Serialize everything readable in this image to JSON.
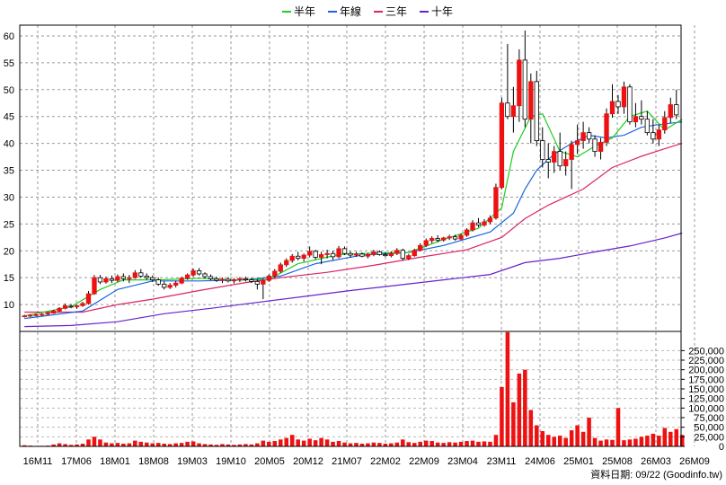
{
  "legend": [
    {
      "label": "半年",
      "color": "#22cc22"
    },
    {
      "label": "年線",
      "color": "#1a66dd"
    },
    {
      "label": "三年",
      "color": "#dd2266"
    },
    {
      "label": "十年",
      "color": "#6622cc"
    }
  ],
  "credit": {
    "label": "資料日期:",
    "date": "09/22",
    "source": "(Goodinfo.tw)"
  },
  "chart_data": {
    "type": "candlestick",
    "x_tick_labels": [
      "16M11",
      "17M06",
      "18M01",
      "18M08",
      "19M03",
      "19M10",
      "20M05",
      "20M12",
      "21M07",
      "22M02",
      "22M09",
      "23M04",
      "23M11",
      "24M06",
      "25M01",
      "25M08",
      "26M03",
      "26M09"
    ],
    "price_axis": {
      "ylim": [
        5,
        62
      ],
      "ticks": [
        10,
        15,
        20,
        25,
        30,
        35,
        40,
        45,
        50,
        55,
        60
      ]
    },
    "volume_axis": {
      "ylim": [
        0,
        300000
      ],
      "ticks": [
        0,
        25000,
        50000,
        75000,
        100000,
        125000,
        150000,
        175000,
        200000,
        225000,
        250000
      ],
      "tick_labels": [
        "0",
        "25,000",
        "50,000",
        "75,000",
        "100,000",
        "125,000",
        "150,000",
        "175,000",
        "200,000",
        "225,000",
        "250,000"
      ]
    },
    "colors": {
      "up": "#ee1111",
      "down": "#00a000",
      "volume": "#ee1111"
    },
    "candles": [
      [
        7.8,
        8.1,
        7.6,
        7.9
      ],
      [
        7.9,
        8.2,
        7.7,
        8.0
      ],
      [
        8.0,
        8.3,
        7.8,
        8.1
      ],
      [
        8.1,
        8.4,
        7.9,
        8.2
      ],
      [
        8.2,
        8.6,
        8.0,
        8.4
      ],
      [
        8.4,
        9.0,
        8.3,
        8.8
      ],
      [
        8.8,
        9.5,
        8.6,
        9.3
      ],
      [
        9.3,
        10.2,
        9.1,
        9.8
      ],
      [
        9.7,
        10.1,
        9.3,
        9.6
      ],
      [
        9.6,
        10.0,
        9.2,
        9.8
      ],
      [
        9.8,
        10.5,
        9.6,
        10.2
      ],
      [
        10.2,
        12.5,
        10.0,
        12.0
      ],
      [
        12.0,
        15.5,
        11.8,
        15.0
      ],
      [
        15.0,
        15.5,
        13.8,
        14.2
      ],
      [
        14.2,
        15.2,
        13.9,
        14.8
      ],
      [
        14.8,
        15.4,
        14.0,
        14.5
      ],
      [
        14.5,
        15.6,
        14.2,
        15.2
      ],
      [
        15.2,
        15.8,
        14.3,
        14.8
      ],
      [
        14.8,
        15.5,
        14.0,
        15.0
      ],
      [
        15.0,
        16.4,
        14.8,
        15.9
      ],
      [
        15.9,
        16.6,
        15.0,
        15.3
      ],
      [
        15.3,
        15.8,
        14.6,
        15.0
      ],
      [
        15.0,
        15.4,
        14.2,
        14.6
      ],
      [
        14.6,
        15.0,
        13.5,
        13.8
      ],
      [
        13.8,
        14.3,
        12.8,
        13.2
      ],
      [
        13.2,
        14.0,
        12.9,
        13.6
      ],
      [
        13.6,
        14.4,
        13.2,
        14.0
      ],
      [
        14.0,
        15.2,
        13.8,
        14.9
      ],
      [
        14.9,
        15.8,
        14.6,
        15.5
      ],
      [
        15.5,
        16.7,
        15.2,
        16.3
      ],
      [
        16.3,
        16.8,
        15.4,
        15.7
      ],
      [
        15.7,
        16.0,
        14.9,
        15.2
      ],
      [
        15.2,
        15.6,
        14.5,
        14.8
      ],
      [
        14.8,
        15.2,
        14.2,
        14.5
      ],
      [
        14.5,
        15.0,
        14.0,
        14.7
      ],
      [
        14.7,
        15.1,
        14.1,
        14.4
      ],
      [
        14.4,
        14.9,
        13.9,
        14.6
      ],
      [
        14.6,
        15.1,
        14.2,
        14.8
      ],
      [
        14.8,
        15.2,
        14.3,
        14.6
      ],
      [
        14.6,
        15.0,
        14.0,
        14.3
      ],
      [
        14.3,
        14.7,
        12.8,
        13.8
      ],
      [
        13.8,
        14.8,
        11.0,
        14.5
      ],
      [
        14.5,
        15.6,
        14.2,
        15.3
      ],
      [
        15.3,
        16.6,
        15.0,
        16.2
      ],
      [
        16.2,
        17.8,
        15.9,
        17.4
      ],
      [
        17.4,
        18.6,
        17.0,
        18.2
      ],
      [
        18.2,
        19.4,
        17.8,
        19.0
      ],
      [
        19.0,
        19.8,
        18.2,
        18.6
      ],
      [
        18.6,
        19.5,
        18.0,
        19.2
      ],
      [
        19.2,
        20.8,
        18.8,
        19.9
      ],
      [
        19.9,
        20.2,
        18.4,
        18.8
      ],
      [
        18.8,
        19.8,
        17.5,
        19.3
      ],
      [
        19.3,
        20.2,
        18.6,
        19.5
      ],
      [
        19.5,
        20.0,
        18.3,
        18.9
      ],
      [
        18.9,
        20.9,
        18.6,
        20.4
      ],
      [
        20.4,
        20.8,
        19.2,
        19.5
      ],
      [
        19.5,
        19.9,
        18.7,
        19.2
      ],
      [
        19.2,
        19.8,
        18.9,
        19.4
      ],
      [
        19.4,
        19.7,
        18.8,
        19.0
      ],
      [
        19.0,
        19.6,
        18.6,
        19.3
      ],
      [
        19.3,
        20.2,
        19.0,
        19.8
      ],
      [
        19.8,
        20.1,
        19.1,
        19.3
      ],
      [
        19.3,
        19.7,
        18.9,
        19.1
      ],
      [
        19.1,
        19.9,
        18.8,
        19.5
      ],
      [
        19.5,
        20.5,
        19.2,
        20.1
      ],
      [
        20.1,
        20.4,
        18.2,
        18.6
      ],
      [
        18.6,
        19.4,
        18.3,
        19.1
      ],
      [
        19.1,
        20.4,
        18.9,
        20.1
      ],
      [
        20.1,
        21.4,
        19.9,
        21.0
      ],
      [
        21.0,
        22.3,
        20.7,
        21.9
      ],
      [
        21.9,
        22.7,
        21.4,
        22.3
      ],
      [
        22.3,
        22.9,
        21.6,
        22.0
      ],
      [
        22.0,
        22.6,
        21.7,
        22.4
      ],
      [
        22.4,
        23.0,
        22.0,
        22.6
      ],
      [
        22.6,
        23.0,
        21.9,
        22.2
      ],
      [
        22.2,
        23.2,
        22.0,
        22.9
      ],
      [
        22.9,
        24.2,
        22.6,
        23.9
      ],
      [
        23.9,
        25.7,
        23.6,
        25.2
      ],
      [
        25.2,
        26.1,
        24.4,
        24.8
      ],
      [
        24.8,
        25.9,
        24.5,
        25.4
      ],
      [
        25.4,
        26.6,
        25.0,
        26.1
      ],
      [
        26.1,
        32.5,
        25.8,
        31.8
      ],
      [
        31.8,
        48.5,
        31.5,
        47.5
      ],
      [
        47.5,
        58.5,
        44.5,
        45.0
      ],
      [
        45.0,
        50.5,
        42.0,
        47.0
      ],
      [
        47.0,
        57.5,
        44.0,
        55.5
      ],
      [
        55.5,
        61.0,
        43.0,
        44.5
      ],
      [
        44.5,
        53.0,
        40.0,
        51.5
      ],
      [
        51.5,
        53.5,
        39.5,
        40.5
      ],
      [
        40.5,
        43.0,
        35.5,
        37.0
      ],
      [
        37.0,
        40.0,
        33.5,
        36.5
      ],
      [
        36.5,
        39.5,
        34.5,
        38.5
      ],
      [
        38.5,
        42.0,
        35.0,
        35.8
      ],
      [
        35.8,
        38.5,
        34.0,
        37.0
      ],
      [
        37.0,
        40.5,
        31.5,
        39.8
      ],
      [
        39.8,
        43.5,
        38.0,
        40.5
      ],
      [
        40.5,
        44.0,
        39.0,
        42.0
      ],
      [
        42.0,
        43.0,
        40.0,
        40.8
      ],
      [
        40.8,
        41.5,
        37.5,
        38.5
      ],
      [
        38.5,
        41.0,
        37.0,
        40.2
      ],
      [
        40.2,
        46.5,
        39.5,
        45.5
      ],
      [
        45.5,
        51.0,
        44.8,
        47.8
      ],
      [
        47.8,
        49.0,
        45.5,
        46.8
      ],
      [
        46.8,
        51.5,
        45.5,
        50.5
      ],
      [
        50.5,
        51.0,
        43.5,
        44.0
      ],
      [
        44.0,
        47.5,
        43.0,
        45.0
      ],
      [
        45.0,
        48.0,
        43.5,
        44.5
      ],
      [
        44.5,
        46.0,
        41.5,
        42.0
      ],
      [
        42.0,
        44.5,
        40.0,
        40.8
      ],
      [
        40.8,
        43.5,
        39.5,
        42.5
      ],
      [
        42.5,
        46.0,
        41.8,
        44.8
      ],
      [
        44.8,
        48.5,
        43.8,
        47.2
      ],
      [
        47.2,
        50.0,
        44.5,
        45.3
      ]
    ],
    "ma_half_year": [
      [
        0,
        7.9
      ],
      [
        8,
        9.6
      ],
      [
        13,
        12.8
      ],
      [
        17,
        14.6
      ],
      [
        23,
        14.6
      ],
      [
        30,
        14.9
      ],
      [
        36,
        14.6
      ],
      [
        42,
        14.7
      ],
      [
        47,
        17.6
      ],
      [
        54,
        19.3
      ],
      [
        60,
        19.6
      ],
      [
        66,
        19.7
      ],
      [
        72,
        22.1
      ],
      [
        78,
        24.2
      ],
      [
        82,
        28.0
      ],
      [
        84,
        38.5
      ],
      [
        87,
        45.0
      ],
      [
        89,
        45.5
      ],
      [
        92,
        38.5
      ],
      [
        95,
        37.5
      ],
      [
        98,
        39.5
      ],
      [
        101,
        41.0
      ],
      [
        104,
        45.0
      ],
      [
        107,
        46.0
      ],
      [
        110,
        42.5
      ],
      [
        113,
        44.5
      ]
    ],
    "ma_year": [
      [
        0,
        7.4
      ],
      [
        10,
        8.8
      ],
      [
        16,
        12.8
      ],
      [
        22,
        14.4
      ],
      [
        30,
        14.4
      ],
      [
        38,
        14.6
      ],
      [
        44,
        15.3
      ],
      [
        50,
        17.6
      ],
      [
        58,
        19.2
      ],
      [
        66,
        19.7
      ],
      [
        72,
        21.0
      ],
      [
        80,
        23.5
      ],
      [
        84,
        27.0
      ],
      [
        86,
        31.5
      ],
      [
        88,
        35.0
      ],
      [
        91,
        38.0
      ],
      [
        94,
        40.0
      ],
      [
        97,
        41.5
      ],
      [
        100,
        41.0
      ],
      [
        103,
        41.5
      ],
      [
        106,
        43.0
      ],
      [
        109,
        43.5
      ],
      [
        113,
        44.0
      ]
    ],
    "ma_3year": [
      [
        0,
        8.6
      ],
      [
        10,
        8.6
      ],
      [
        16,
        10.0
      ],
      [
        22,
        11.0
      ],
      [
        30,
        12.6
      ],
      [
        38,
        14.1
      ],
      [
        44,
        15.0
      ],
      [
        52,
        16.0
      ],
      [
        60,
        17.3
      ],
      [
        68,
        18.8
      ],
      [
        76,
        20.2
      ],
      [
        82,
        22.5
      ],
      [
        86,
        26.0
      ],
      [
        90,
        28.5
      ],
      [
        96,
        31.5
      ],
      [
        101,
        35.5
      ],
      [
        106,
        37.6
      ],
      [
        110,
        39.0
      ],
      [
        113,
        40.0
      ]
    ],
    "ma_10year": [
      [
        0,
        5.9
      ],
      [
        8,
        6.1
      ],
      [
        16,
        6.8
      ],
      [
        24,
        8.3
      ],
      [
        32,
        9.3
      ],
      [
        40,
        10.4
      ],
      [
        48,
        11.5
      ],
      [
        56,
        12.6
      ],
      [
        64,
        13.6
      ],
      [
        72,
        14.6
      ],
      [
        80,
        15.6
      ],
      [
        86,
        17.8
      ],
      [
        92,
        18.6
      ],
      [
        98,
        19.8
      ],
      [
        104,
        20.9
      ],
      [
        110,
        22.4
      ],
      [
        113,
        23.3
      ]
    ],
    "volume": [
      3000,
      2000,
      1000,
      1500,
      2000,
      5000,
      8000,
      6000,
      4000,
      5000,
      7000,
      18000,
      25000,
      18000,
      10000,
      8000,
      9000,
      7000,
      8000,
      15000,
      12000,
      10000,
      8000,
      9000,
      7000,
      6000,
      8000,
      9000,
      12000,
      13000,
      8000,
      6000,
      5000,
      4000,
      6000,
      5000,
      4000,
      5000,
      6000,
      5000,
      8000,
      15000,
      12000,
      14000,
      18000,
      22000,
      30000,
      18000,
      15000,
      20000,
      16000,
      22000,
      18000,
      12000,
      14000,
      10000,
      8000,
      9000,
      7000,
      8000,
      10000,
      9000,
      7000,
      8000,
      10000,
      18000,
      11000,
      9000,
      12000,
      15000,
      14000,
      10000,
      9000,
      11000,
      10000,
      12000,
      14000,
      15000,
      12000,
      13000,
      12000,
      30000,
      155000,
      298000,
      115000,
      190000,
      200000,
      95000,
      55000,
      40000,
      30000,
      25000,
      28000,
      22000,
      42000,
      55000,
      38000,
      75000,
      22000,
      15000,
      18000,
      17000,
      100000,
      16000,
      18000,
      20000,
      25000,
      28000,
      33000,
      28000,
      48000,
      38000,
      45000,
      30000
    ]
  }
}
